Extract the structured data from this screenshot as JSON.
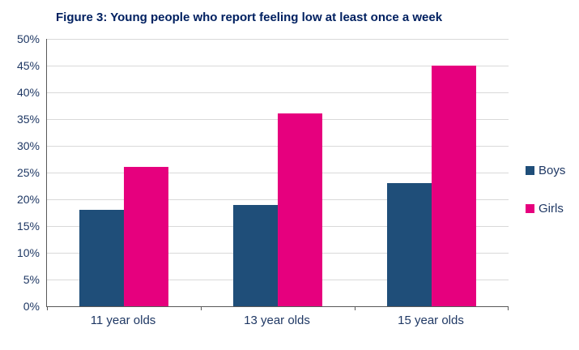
{
  "chart_data": {
    "type": "bar",
    "title": "Figure 3: Young people who report feeling low at least once a week",
    "categories": [
      "11 year olds",
      "13 year olds",
      "15 year olds"
    ],
    "series": [
      {
        "name": "Boys",
        "color": "#1F4E79",
        "values": [
          18,
          19,
          23
        ]
      },
      {
        "name": "Girls",
        "color": "#E6007E",
        "values": [
          26,
          36,
          45
        ]
      }
    ],
    "ylim": [
      0,
      50
    ],
    "ytick_step": 5,
    "ytick_labels": [
      "0%",
      "5%",
      "10%",
      "15%",
      "20%",
      "25%",
      "30%",
      "35%",
      "40%",
      "45%",
      "50%"
    ],
    "grid": "horizontal",
    "legend_position": "right"
  },
  "colors": {
    "title": "#002060",
    "axis_label": "#1F3864",
    "gridline": "#D9D9D9",
    "axis_line": "#595959",
    "background": "#FFFFFF"
  }
}
